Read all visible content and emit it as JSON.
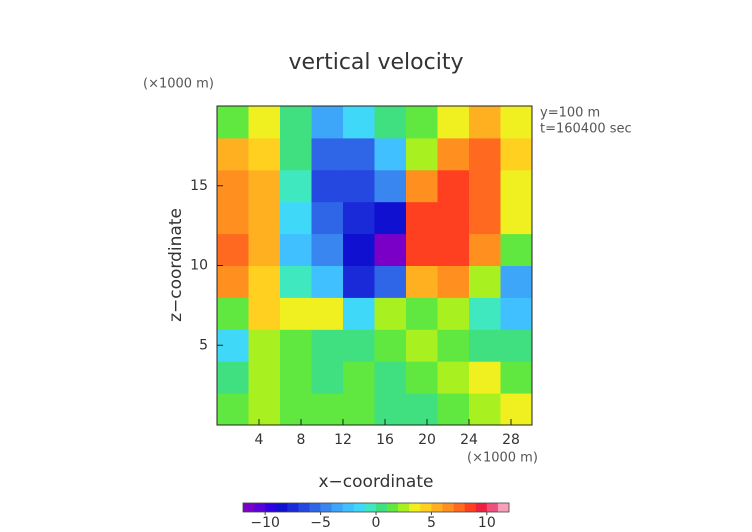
{
  "chart_data": {
    "type": "contour",
    "title": "vertical velocity",
    "xlabel": "x−coordinate",
    "ylabel": "z−coordinate",
    "x_unit_label": "(×1000 m)",
    "y_unit_label": "(×1000 m)",
    "annotations": [
      "y=100 m",
      "t=160400 sec"
    ],
    "x": [
      1.5,
      4.5,
      7.5,
      10.5,
      13.5,
      16.5,
      19.5,
      22.5,
      25.5,
      28.5
    ],
    "y": [
      1,
      3,
      5,
      7,
      9,
      11,
      13,
      15,
      17,
      19
    ],
    "values": [
      [
        1,
        2,
        1,
        1,
        1,
        0,
        0,
        1,
        2,
        3
      ],
      [
        0,
        2,
        1,
        0,
        1,
        0,
        1,
        2,
        3,
        1
      ],
      [
        -2,
        2,
        1,
        0,
        0,
        1,
        2,
        1,
        0,
        0
      ],
      [
        1,
        4,
        3,
        3,
        -2,
        2,
        1,
        2,
        -1,
        -3
      ],
      [
        6,
        4,
        -1,
        -3,
        -8,
        -6,
        5,
        6,
        2,
        -4
      ],
      [
        7,
        5,
        -3,
        -5,
        -9,
        -12,
        8,
        8,
        6,
        1
      ],
      [
        6,
        5,
        -2,
        -6,
        -8,
        -9,
        8,
        8,
        7,
        3
      ],
      [
        6,
        5,
        -1,
        -7,
        -7,
        -5,
        6,
        8,
        7,
        3
      ],
      [
        5,
        4,
        0,
        -6,
        -6,
        -3,
        2,
        6,
        7,
        4
      ],
      [
        1,
        3,
        0,
        -4,
        -2,
        0,
        1,
        3,
        5,
        3
      ]
    ],
    "xlim": [
      0,
      30
    ],
    "ylim": [
      0,
      20
    ],
    "xticks": [
      4,
      8,
      12,
      16,
      20,
      24,
      28
    ],
    "yticks": [
      5,
      10,
      15
    ],
    "colorbar": {
      "lim": [
        -12,
        12
      ],
      "ticks": [
        {
          "value": -10,
          "label": "−10"
        },
        {
          "value": -5,
          "label": "−5"
        },
        0,
        5,
        10
      ],
      "colors": [
        "#7a00c8",
        "#5a00d8",
        "#3000e0",
        "#1010d0",
        "#1a2ad8",
        "#2448e0",
        "#2f66e8",
        "#3a86f0",
        "#3ea6f8",
        "#40c0ff",
        "#40d8f8",
        "#40e8c0",
        "#40e080",
        "#60e840",
        "#a8f020",
        "#f0f020",
        "#ffd020",
        "#ffb020",
        "#ff9020",
        "#ff6a20",
        "#ff4020",
        "#ee2040",
        "#f05080",
        "#f8a0b8"
      ]
    }
  }
}
